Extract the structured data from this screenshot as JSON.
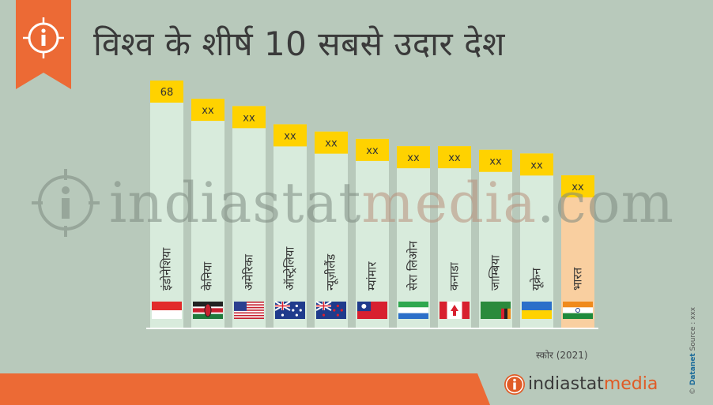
{
  "title": "विश्व के शीर्ष 10 सबसे उदार देश",
  "colors": {
    "background": "#b8c9bb",
    "bar": "#d8ebdc",
    "bar_highlight": "#f9cfa0",
    "label_box": "#ffd200",
    "accent": "#ec6a35"
  },
  "icons": {
    "ribbon": "info-icon"
  },
  "chart_data": {
    "type": "bar",
    "title": "विश्व के शीर्ष 10 सबसे उदार देश",
    "xlabel": "स्कोर (2021)",
    "ylabel": "",
    "categories": [
      "इंडोनेशिया",
      "केनिया",
      "अमेरिका",
      "ऑस्ट्रेलिया",
      "न्यूज़ीलैंड",
      "म्यांमार",
      "सेरा लिओन",
      "कनाडा",
      "जाम्बिया",
      "यूक्रेन",
      "भारत"
    ],
    "flags": [
      "indonesia",
      "kenya",
      "usa",
      "australia",
      "new-zealand",
      "myanmar",
      "sierra-leone",
      "canada",
      "zambia",
      "ukraine",
      "india"
    ],
    "values": [
      68,
      63,
      61,
      56,
      54,
      52,
      50,
      50,
      49,
      48,
      42
    ],
    "labels": [
      "68",
      "xx",
      "xx",
      "xx",
      "xx",
      "xx",
      "xx",
      "xx",
      "xx",
      "xx",
      "xx"
    ],
    "highlight_index": 10,
    "ylim": [
      0,
      68
    ]
  },
  "watermark": {
    "part_a": "indiastat",
    "part_b": "media",
    "part_c": ".com"
  },
  "footer": {
    "brand_a": "indiastat",
    "brand_b": "media"
  },
  "credit": {
    "copyright": "©",
    "datanet": "Datanet",
    "source": "Source : xxx"
  }
}
